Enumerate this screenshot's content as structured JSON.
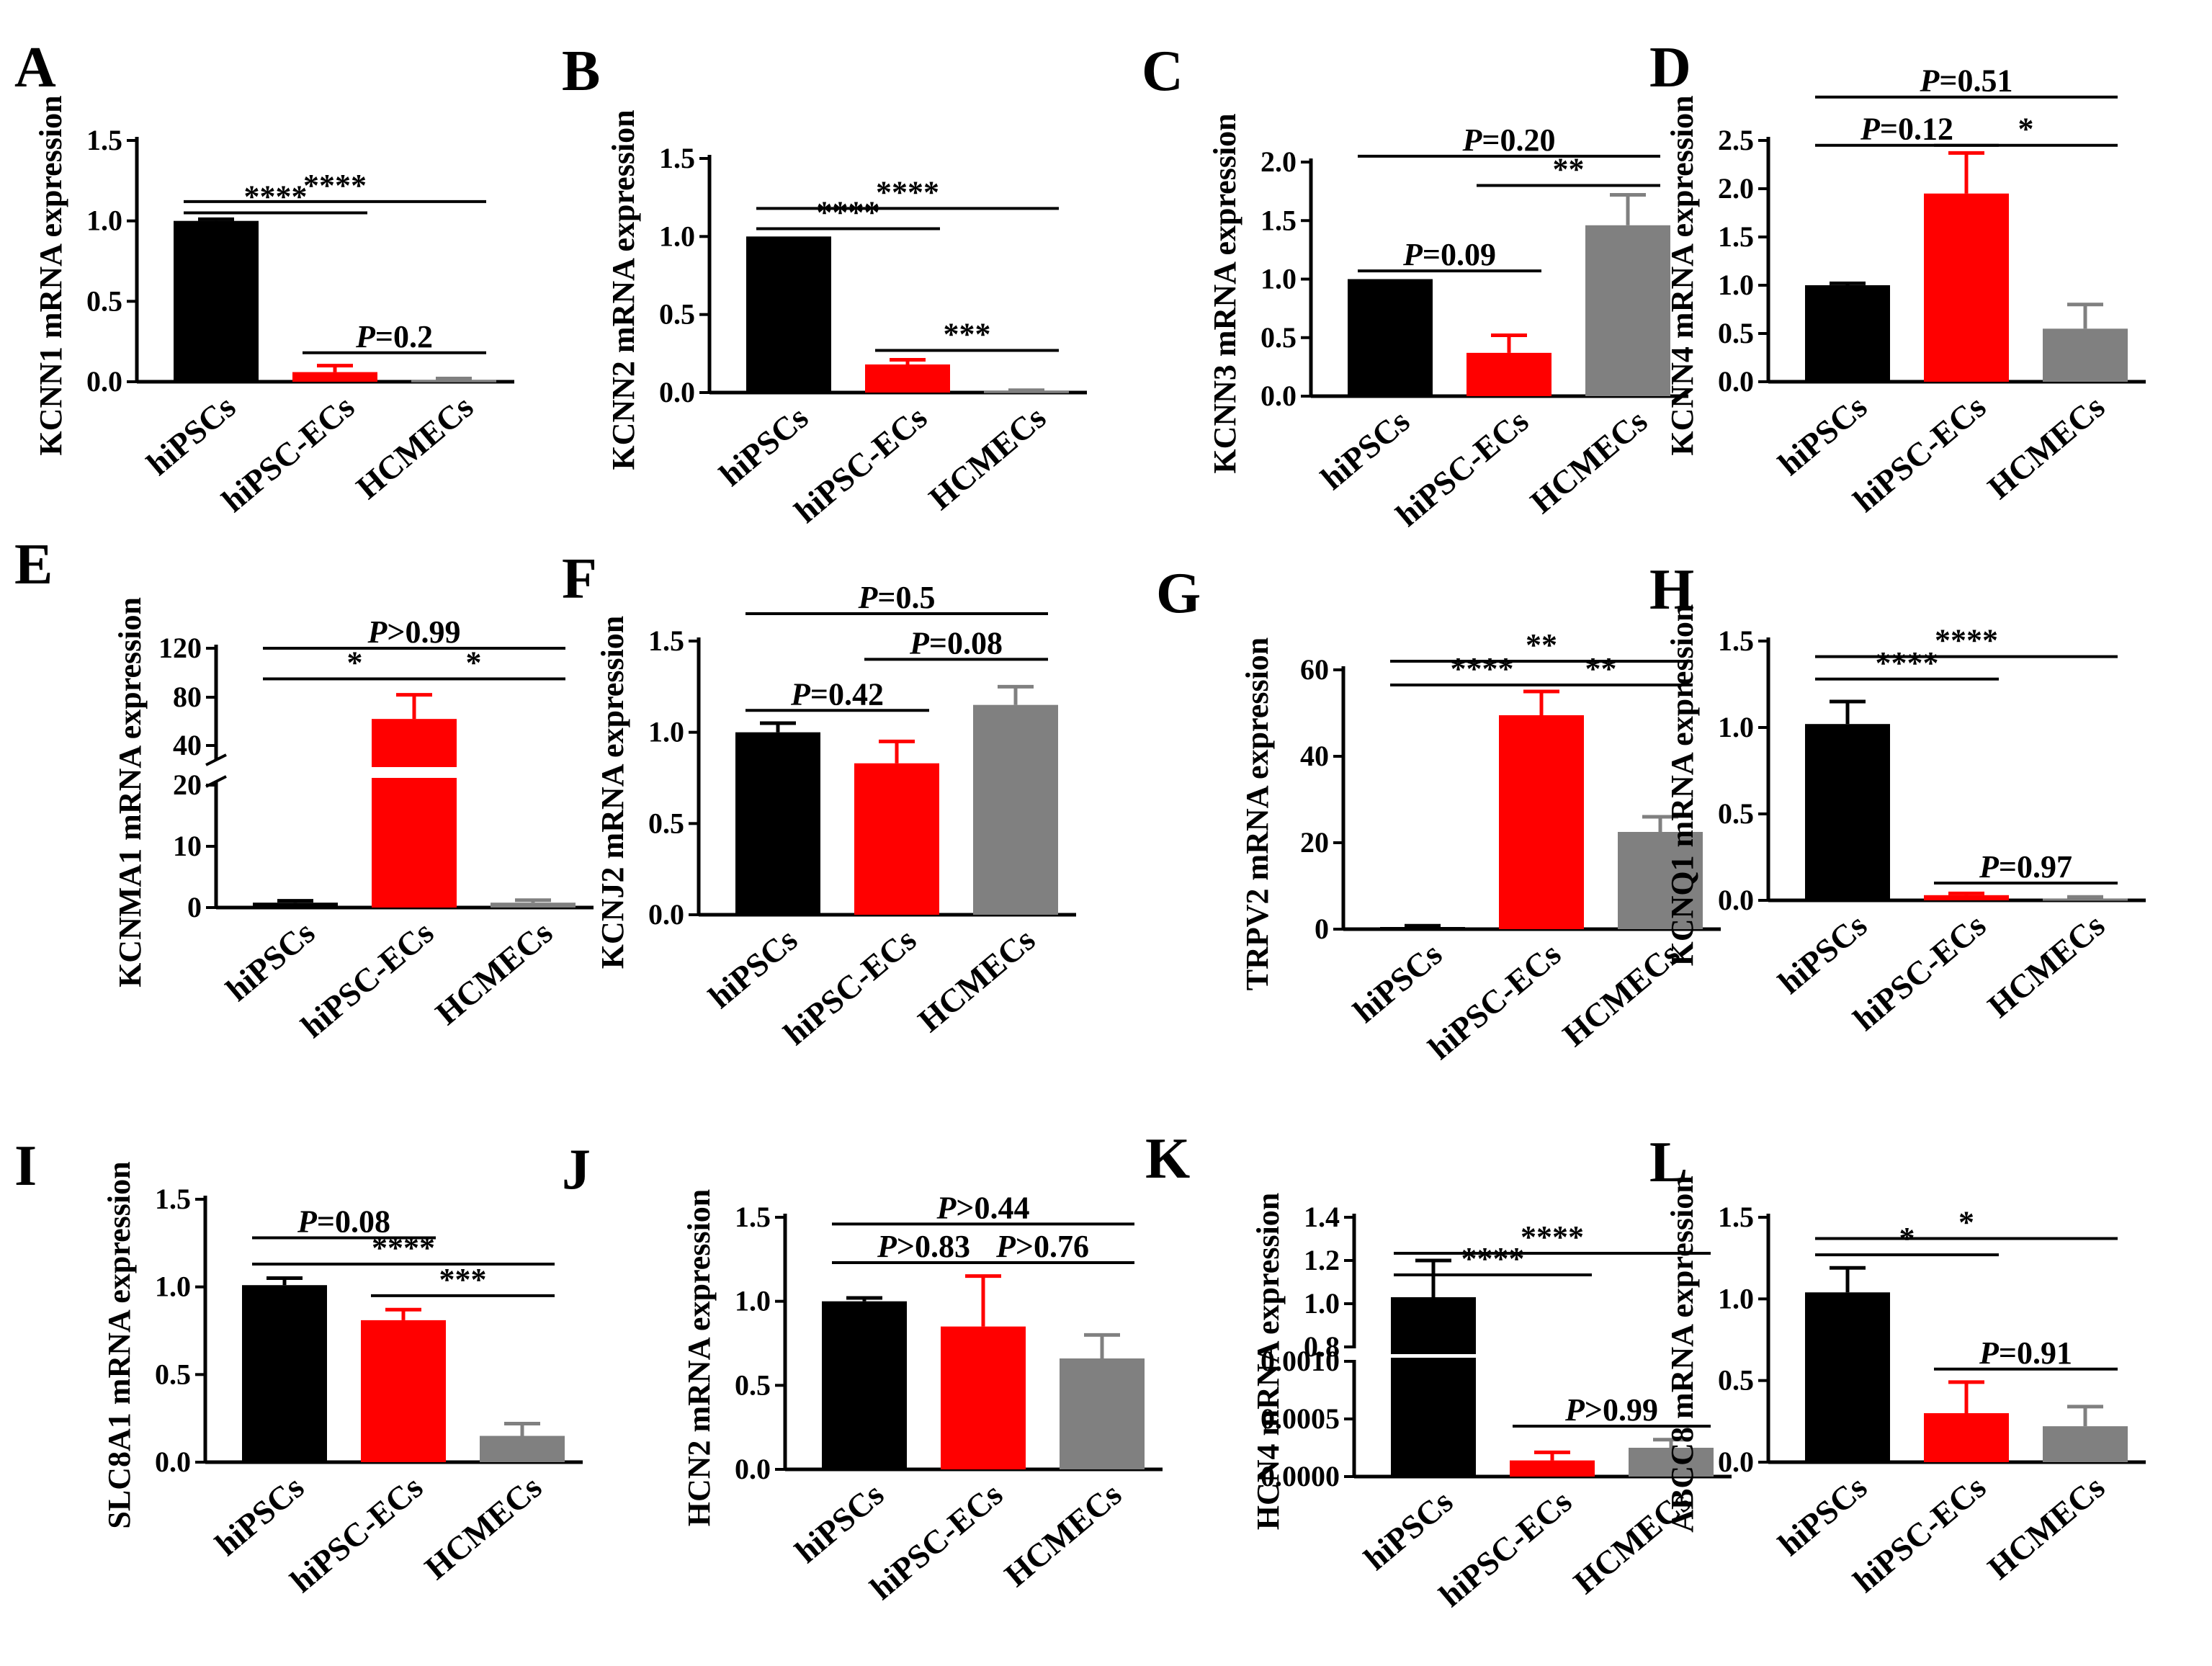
{
  "colors": {
    "hiPSCs": "#000000",
    "hiPSC-ECs": "#ff0000",
    "HCMECs": "#808080"
  },
  "chart_data": [
    {
      "panel": "A",
      "type": "bar",
      "ylabel": "KCNN1 mRNA expression",
      "categories": [
        "hiPSCs",
        "hiPSC-ECs",
        "HCMECs"
      ],
      "values": [
        1.0,
        0.06,
        0.01
      ],
      "errors": [
        0.01,
        0.04,
        0.01
      ],
      "ylim": [
        0,
        1.5
      ],
      "yticks": [
        "0.0",
        "0.5",
        "1.0",
        "1.5"
      ],
      "comparisons": [
        {
          "from": 0,
          "to": 1,
          "y": 1.05,
          "label": "****"
        },
        {
          "from": 0,
          "to": 2,
          "y": 1.12,
          "label": "****"
        },
        {
          "from": 1,
          "to": 2,
          "y": 0.18,
          "label": "P=0.2"
        }
      ]
    },
    {
      "panel": "B",
      "type": "bar",
      "ylabel": "KCNN2 mRNA expression",
      "categories": [
        "hiPSCs",
        "hiPSC-ECs",
        "HCMECs"
      ],
      "values": [
        1.0,
        0.18,
        0.01
      ],
      "errors": [
        0.0,
        0.03,
        0.005
      ],
      "ylim": [
        0,
        1.5
      ],
      "yticks": [
        "0.0",
        "0.5",
        "1.0",
        "1.5"
      ],
      "comparisons": [
        {
          "from": 0,
          "to": 1,
          "y": 1.05,
          "label": "****"
        },
        {
          "from": 0,
          "to": 2,
          "y": 1.18,
          "label": "****"
        },
        {
          "from": 1,
          "to": 2,
          "y": 0.27,
          "label": "***"
        }
      ]
    },
    {
      "panel": "C",
      "type": "bar",
      "ylabel": "KCNN3 mRNA expression",
      "categories": [
        "hiPSCs",
        "hiPSC-ECs",
        "HCMECs"
      ],
      "values": [
        1.0,
        0.37,
        1.46
      ],
      "errors": [
        0.0,
        0.15,
        0.26
      ],
      "ylim": [
        0,
        2.0
      ],
      "yticks": [
        "0.0",
        "0.5",
        "1.0",
        "1.5",
        "2.0"
      ],
      "comparisons": [
        {
          "from": 0,
          "to": 1,
          "y": 1.07,
          "label": "P=0.09"
        },
        {
          "from": 1,
          "to": 2,
          "y": 1.8,
          "label": "**"
        },
        {
          "from": 0,
          "to": 2,
          "y": 2.05,
          "label": "P=0.20"
        }
      ]
    },
    {
      "panel": "D",
      "type": "bar",
      "ylabel": "KCNN4 mRNA expression",
      "categories": [
        "hiPSCs",
        "hiPSC-ECs",
        "HCMECs"
      ],
      "values": [
        1.0,
        1.95,
        0.55
      ],
      "errors": [
        0.02,
        0.42,
        0.25
      ],
      "ylim": [
        0,
        2.5
      ],
      "yticks": [
        "0.0",
        "0.5",
        "1.0",
        "1.5",
        "2.0",
        "2.5"
      ],
      "comparisons": [
        {
          "from": 0,
          "to": 1,
          "y": 2.45,
          "label": "P=0.12"
        },
        {
          "from": 1,
          "to": 2,
          "y": 2.45,
          "label": "*"
        },
        {
          "from": 0,
          "to": 2,
          "y": 2.95,
          "label": "P=0.51"
        }
      ]
    },
    {
      "panel": "E",
      "type": "bar",
      "axis_break": true,
      "ylabel": "KCNMA1 mRNA expression",
      "categories": [
        "hiPSCs",
        "hiPSC-ECs",
        "HCMECs"
      ],
      "values": [
        0.8,
        62,
        0.8
      ],
      "errors": [
        0.3,
        20,
        0.4
      ],
      "ylim": [
        0,
        120
      ],
      "yticks": [
        "0",
        "10",
        "20",
        "40",
        "80",
        "120"
      ],
      "comparisons": [
        {
          "from": 0,
          "to": 1,
          "y": 95,
          "label": "*"
        },
        {
          "from": 1,
          "to": 2,
          "y": 95,
          "label": "*"
        },
        {
          "from": 0,
          "to": 2,
          "y": 125,
          "label": "P>0.99"
        }
      ]
    },
    {
      "panel": "F",
      "type": "bar",
      "ylabel": "KCNJ2 mRNA expression",
      "categories": [
        "hiPSCs",
        "hiPSC-ECs",
        "HCMECs"
      ],
      "values": [
        1.0,
        0.83,
        1.15
      ],
      "errors": [
        0.05,
        0.12,
        0.1
      ],
      "ylim": [
        0,
        1.5
      ],
      "yticks": [
        "0.0",
        "0.5",
        "1.0",
        "1.5"
      ],
      "comparisons": [
        {
          "from": 0,
          "to": 1,
          "y": 1.12,
          "label": "P=0.42"
        },
        {
          "from": 1,
          "to": 2,
          "y": 1.4,
          "label": "P=0.08"
        },
        {
          "from": 0,
          "to": 2,
          "y": 1.65,
          "label": "P=0.5"
        }
      ]
    },
    {
      "panel": "G",
      "type": "bar",
      "ylabel": "TRPV2 mRNA expression",
      "categories": [
        "hiPSCs",
        "hiPSC-ECs",
        "HCMECs"
      ],
      "values": [
        0.5,
        49.5,
        22.5
      ],
      "errors": [
        0.3,
        5.5,
        3.5
      ],
      "ylim": [
        0,
        60
      ],
      "yticks": [
        "0",
        "20",
        "40",
        "60"
      ],
      "comparisons": [
        {
          "from": 0,
          "to": 1,
          "y": 56.5,
          "label": "****"
        },
        {
          "from": 1,
          "to": 2,
          "y": 56.5,
          "label": "**"
        },
        {
          "from": 0,
          "to": 2,
          "y": 62,
          "label": "**"
        }
      ]
    },
    {
      "panel": "H",
      "type": "bar",
      "ylabel": "KCNQ1 mRNA expression",
      "categories": [
        "hiPSCs",
        "hiPSC-ECs",
        "HCMECs"
      ],
      "values": [
        1.02,
        0.03,
        0.01
      ],
      "errors": [
        0.13,
        0.01,
        0.01
      ],
      "ylim": [
        0,
        1.5
      ],
      "yticks": [
        "0.0",
        "0.5",
        "1.0",
        "1.5"
      ],
      "comparisons": [
        {
          "from": 0,
          "to": 1,
          "y": 1.28,
          "label": "****"
        },
        {
          "from": 0,
          "to": 2,
          "y": 1.41,
          "label": "****"
        },
        {
          "from": 1,
          "to": 2,
          "y": 0.1,
          "label": "P=0.97"
        }
      ]
    },
    {
      "panel": "I",
      "type": "bar",
      "ylabel": "SLC8A1 mRNA expression",
      "categories": [
        "hiPSCs",
        "hiPSC-ECs",
        "HCMECs"
      ],
      "values": [
        1.01,
        0.81,
        0.15
      ],
      "errors": [
        0.04,
        0.06,
        0.07
      ],
      "ylim": [
        0,
        1.5
      ],
      "yticks": [
        "0.0",
        "0.5",
        "1.0",
        "1.5"
      ],
      "comparisons": [
        {
          "from": 0,
          "to": 1,
          "y": 1.28,
          "label": "P=0.08"
        },
        {
          "from": 0,
          "to": 2,
          "y": 1.13,
          "label": "****"
        },
        {
          "from": 1,
          "to": 2,
          "y": 0.95,
          "label": "***"
        }
      ]
    },
    {
      "panel": "J",
      "type": "bar",
      "ylabel": "HCN2 mRNA expression",
      "categories": [
        "hiPSCs",
        "hiPSC-ECs",
        "HCMECs"
      ],
      "values": [
        1.0,
        0.85,
        0.66
      ],
      "errors": [
        0.02,
        0.3,
        0.14
      ],
      "ylim": [
        0,
        1.5
      ],
      "yticks": [
        "0.0",
        "0.5",
        "1.0",
        "1.5"
      ],
      "comparisons": [
        {
          "from": 0,
          "to": 1,
          "y": 1.23,
          "label": "P>0.83"
        },
        {
          "from": 1,
          "to": 2,
          "y": 1.23,
          "label": "P>0.76"
        },
        {
          "from": 0,
          "to": 2,
          "y": 1.46,
          "label": "P>0.44"
        }
      ]
    },
    {
      "panel": "K",
      "type": "bar",
      "axis_break": true,
      "ylabel": "HCN4 mRNA expression",
      "categories": [
        "hiPSCs",
        "hiPSC-ECs",
        "HCMECs"
      ],
      "values": [
        1.03,
        0.00014,
        0.00025
      ],
      "errors": [
        0.17,
        7e-05,
        7e-05
      ],
      "yticks_low": [
        "0.0000",
        "0.0005",
        "0.0010"
      ],
      "yticks_high": [
        "0.8",
        "1.0",
        "1.2",
        "1.4"
      ],
      "comparisons": [
        {
          "from": 0,
          "to": 1,
          "y": "high",
          "label": "****"
        },
        {
          "from": 0,
          "to": 2,
          "y": "high2",
          "label": "****"
        },
        {
          "from": 1,
          "to": 2,
          "y": "low",
          "label": "P>0.99"
        }
      ]
    },
    {
      "panel": "L",
      "type": "bar",
      "ylabel": "ABCC8 mRNA expression",
      "categories": [
        "hiPSCs",
        "hiPSC-ECs",
        "HCMECs"
      ],
      "values": [
        1.04,
        0.3,
        0.22
      ],
      "errors": [
        0.15,
        0.19,
        0.12
      ],
      "ylim": [
        0,
        1.5
      ],
      "yticks": [
        "0.0",
        "0.5",
        "1.0",
        "1.5"
      ],
      "comparisons": [
        {
          "from": 0,
          "to": 1,
          "y": 1.27,
          "label": "*"
        },
        {
          "from": 0,
          "to": 2,
          "y": 1.37,
          "label": "*"
        },
        {
          "from": 1,
          "to": 2,
          "y": 0.57,
          "label": "P=0.91"
        }
      ]
    }
  ]
}
